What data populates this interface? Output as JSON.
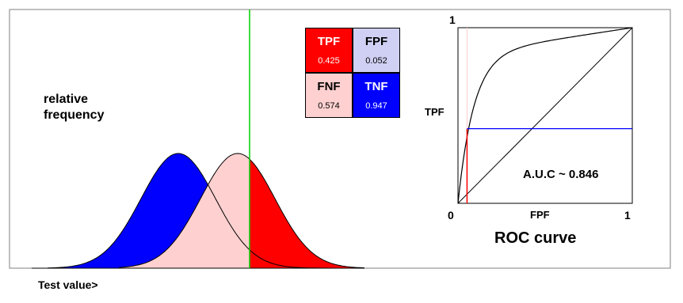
{
  "left_panel": {
    "y_label_line1": "relative",
    "y_label_line2": "frequency",
    "x_label": "Test value>"
  },
  "confusion_matrix": {
    "tpf": {
      "label": "TPF",
      "value": "0.425",
      "color": "#ff0000"
    },
    "fpf": {
      "label": "FPF",
      "value": "0.052",
      "color": "#d0d0f4"
    },
    "fnf": {
      "label": "FNF",
      "value": "0.574",
      "color": "#ffd0d0"
    },
    "tnf": {
      "label": "TNF",
      "value": "0.947",
      "color": "#0000ff"
    }
  },
  "roc": {
    "y_axis_label": "TPF",
    "x_axis_label": "FPF",
    "origin_label": "0",
    "x_max_label": "1",
    "y_max_label": "1",
    "auc_text": "A.U.C ~ 0.846",
    "title": "ROC curve",
    "operating_point": {
      "fpf": 0.052,
      "tpf": 0.425
    }
  },
  "colors": {
    "negative": "#0000ff",
    "positive": "#ff0000",
    "fnf": "#ffd0d0",
    "fpf": "#d0d0f4",
    "threshold": "#00d000",
    "tpf_line": "#0000ff",
    "fpf_line": "#ff0000"
  }
}
